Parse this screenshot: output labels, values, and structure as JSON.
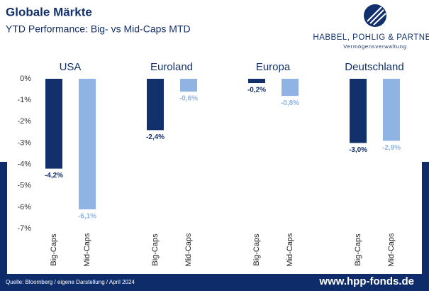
{
  "chart_data": {
    "type": "bar",
    "title": "Globale Märkte",
    "subtitle": "YTD Performance: Big- vs Mid-Caps MTD",
    "brand": "HABBEL, POHLIG & PARTNER",
    "brand_sub": "Vermögensverwaltung",
    "source": "Quelle: Bloomberg / eigene Darstellung / April 2024",
    "website": "www.hpp-fonds.de",
    "categories": [
      "USA",
      "Euroland",
      "Europa",
      "Deutschland"
    ],
    "series": [
      {
        "name": "Big-Caps",
        "color": "#12306b",
        "values": [
          -4.2,
          -2.4,
          -0.2,
          -3.0
        ],
        "value_labels": [
          "-4,2%",
          "-2,4%",
          "-0,2%",
          "-3,0%"
        ]
      },
      {
        "name": "Mid-Caps",
        "color": "#8fb4e4",
        "values": [
          -6.1,
          -0.6,
          -0.8,
          -2.9
        ],
        "value_labels": [
          "-6,1%",
          "-0,6%",
          "-0,8%",
          "-2,9%"
        ]
      }
    ],
    "ylim": [
      -7,
      0
    ],
    "yticks": [
      {
        "value": 0,
        "label": "0%"
      },
      {
        "value": -1,
        "label": "-1%"
      },
      {
        "value": -2,
        "label": "-2%"
      },
      {
        "value": -3,
        "label": "-3%"
      },
      {
        "value": -4,
        "label": "-4%"
      },
      {
        "value": -5,
        "label": "-5%"
      },
      {
        "value": -6,
        "label": "-6%"
      },
      {
        "value": -7,
        "label": "-7%"
      }
    ],
    "grid": false
  }
}
